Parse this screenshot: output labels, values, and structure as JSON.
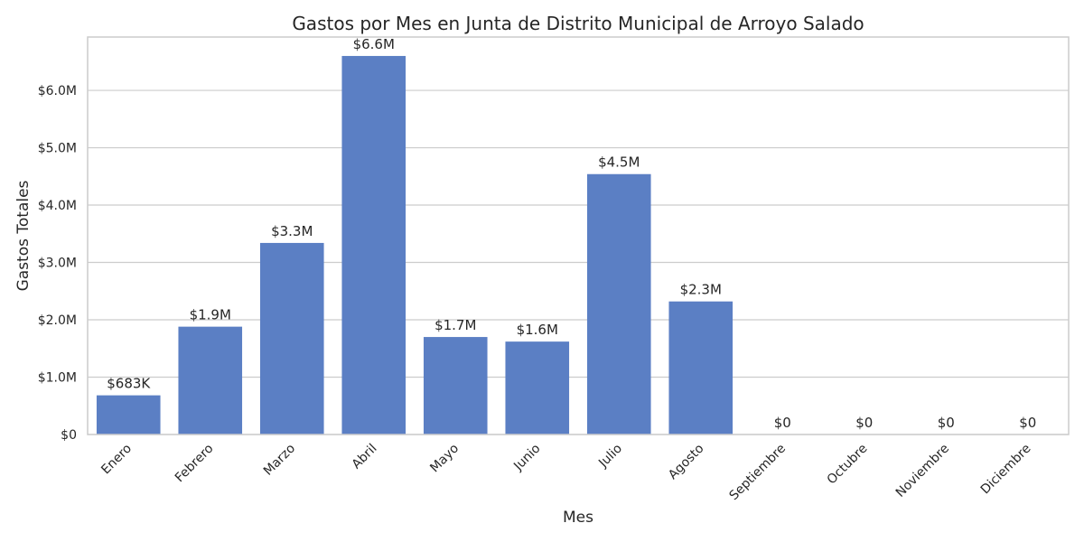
{
  "chart_data": {
    "type": "bar",
    "title": "Gastos por Mes en Junta de Distrito Municipal de Arroyo Salado",
    "xlabel": "Mes",
    "ylabel": "Gastos Totales",
    "categories": [
      "Enero",
      "Febrero",
      "Marzo",
      "Abril",
      "Mayo",
      "Junio",
      "Julio",
      "Agosto",
      "Septiembre",
      "Octubre",
      "Noviembre",
      "Diciembre"
    ],
    "values": [
      683000,
      1880000,
      3340000,
      6600000,
      1700000,
      1620000,
      4540000,
      2320000,
      0,
      0,
      0,
      0
    ],
    "value_labels": [
      "$683K",
      "$1.9M",
      "$3.3M",
      "$6.6M",
      "$1.7M",
      "$1.6M",
      "$4.5M",
      "$2.3M",
      "$0",
      "$0",
      "$0",
      "$0"
    ],
    "yticks": [
      0,
      1000000,
      2000000,
      3000000,
      4000000,
      5000000,
      6000000
    ],
    "ytick_labels": [
      "$0",
      "$1.0M",
      "$2.0M",
      "$3.0M",
      "$4.0M",
      "$5.0M",
      "$6.0M"
    ],
    "ylim": [
      0,
      6930000
    ],
    "grid": true,
    "bar_color": "#5b7fc4"
  }
}
